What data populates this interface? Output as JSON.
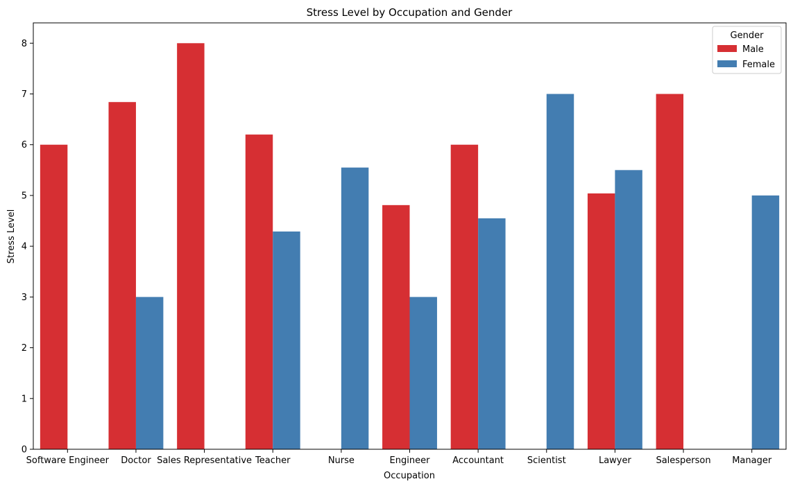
{
  "chart_data": {
    "type": "bar",
    "title": "Stress Level by Occupation and Gender",
    "xlabel": "Occupation",
    "ylabel": "Stress Level",
    "ylim": [
      0,
      8.4
    ],
    "yticks": [
      0,
      1,
      2,
      3,
      4,
      5,
      6,
      7,
      8
    ],
    "grid": false,
    "legend": {
      "title": "Gender",
      "placement": "top-right"
    },
    "categories": [
      "Software Engineer",
      "Doctor",
      "Sales Representative",
      "Teacher",
      "Nurse",
      "Engineer",
      "Accountant",
      "Scientist",
      "Lawyer",
      "Salesperson",
      "Manager"
    ],
    "series": [
      {
        "name": "Male",
        "color": "#d62f33",
        "values": [
          6.0,
          6.84,
          8.0,
          6.2,
          null,
          4.81,
          6.0,
          null,
          5.04,
          7.0,
          null
        ]
      },
      {
        "name": "Female",
        "color": "#437db1",
        "values": [
          null,
          3.0,
          null,
          4.29,
          5.55,
          3.0,
          4.55,
          7.0,
          5.5,
          null,
          5.0
        ]
      }
    ]
  }
}
